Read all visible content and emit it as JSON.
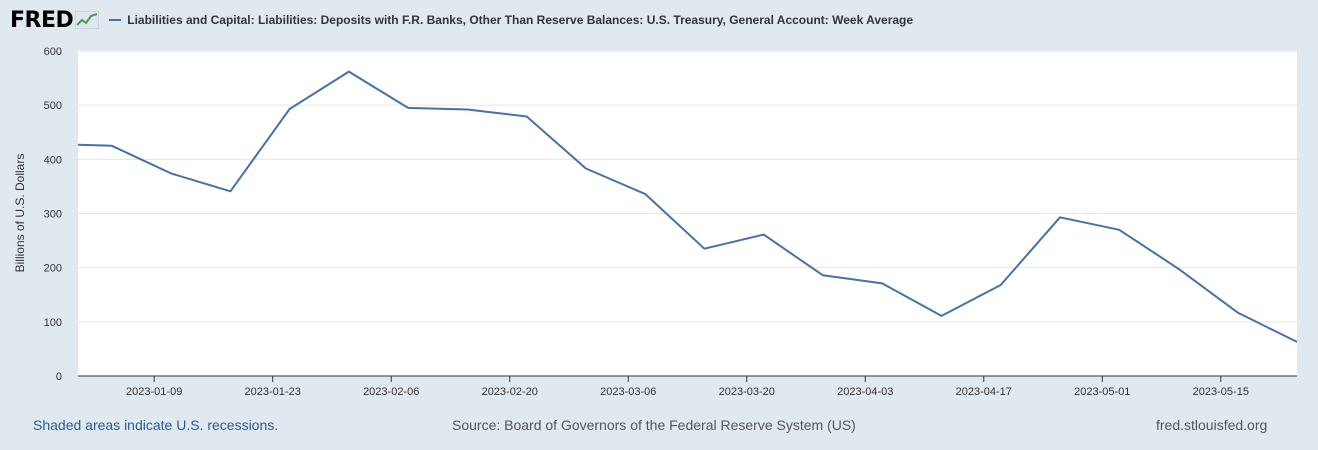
{
  "header": {
    "logo_text": "FRED",
    "series_title": "Liabilities and Capital: Liabilities: Deposits with F.R. Banks, Other Than Reserve Balances: U.S. Treasury, General Account: Week Average"
  },
  "footer": {
    "recessions_note": "Shaded areas indicate U.S. recessions.",
    "source": "Source: Board of Governors of the Federal Reserve System (US)",
    "site": "fred.stlouisfed.org"
  },
  "colors": {
    "line": "#4572a7",
    "background": "#e1e9f0",
    "plot": "#ffffff",
    "grid": "#e6e6e6"
  },
  "chart_data": {
    "type": "line",
    "title": "Liabilities and Capital: Liabilities: Deposits with F.R. Banks, Other Than Reserve Balances: U.S. Treasury, General Account: Week Average",
    "xlabel": "",
    "ylabel": "Billions of U.S. Dollars",
    "ylim": [
      0,
      600
    ],
    "yticks": [
      0,
      100,
      200,
      300,
      400,
      500,
      600
    ],
    "xlim": [
      "2022-12-31",
      "2023-05-24"
    ],
    "xticks": [
      "2023-01-09",
      "2023-01-23",
      "2023-02-06",
      "2023-02-20",
      "2023-03-06",
      "2023-03-20",
      "2023-04-03",
      "2023-04-17",
      "2023-05-01",
      "2023-05-15"
    ],
    "grid": true,
    "x": [
      "2022-12-31",
      "2023-01-04",
      "2023-01-11",
      "2023-01-18",
      "2023-01-25",
      "2023-02-01",
      "2023-02-08",
      "2023-02-15",
      "2023-02-22",
      "2023-03-01",
      "2023-03-08",
      "2023-03-15",
      "2023-03-22",
      "2023-03-29",
      "2023-04-05",
      "2023-04-12",
      "2023-04-19",
      "2023-04-26",
      "2023-05-03",
      "2023-05-10",
      "2023-05-17",
      "2023-05-24"
    ],
    "series": [
      {
        "values": [
          427,
          425,
          374,
          341,
          493,
          562,
          495,
          492,
          479,
          383,
          336,
          235,
          261,
          186,
          171,
          111,
          168,
          293,
          270,
          198,
          117,
          63
        ]
      }
    ]
  }
}
